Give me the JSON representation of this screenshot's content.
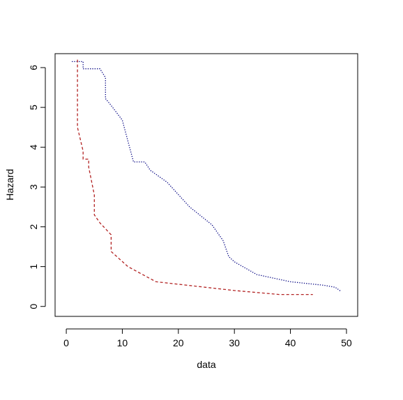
{
  "chart_data": {
    "type": "line",
    "title": "",
    "xlabel": "data",
    "ylabel": "Hazard",
    "xlim": [
      -2,
      52
    ],
    "ylim": [
      -0.25,
      6.35
    ],
    "xticks": [
      0,
      10,
      20,
      30,
      40,
      50
    ],
    "yticks": [
      0,
      1,
      2,
      3,
      4,
      5,
      6
    ],
    "grid": false,
    "legend": "none",
    "series": [
      {
        "style": "dotted",
        "color": "#000080",
        "x": [
          1,
          3,
          3,
          6,
          7,
          7,
          8,
          10,
          12,
          12,
          14,
          15,
          18,
          22,
          26,
          28,
          29,
          30,
          34,
          40,
          46,
          48,
          49
        ],
        "y": [
          6.15,
          6.15,
          5.97,
          5.97,
          5.75,
          5.22,
          5.05,
          4.68,
          3.63,
          3.63,
          3.63,
          3.42,
          3.12,
          2.5,
          2.05,
          1.65,
          1.25,
          1.12,
          0.8,
          0.62,
          0.53,
          0.48,
          0.38
        ]
      },
      {
        "style": "dashed",
        "color": "#b22222",
        "x": [
          2,
          2,
          3,
          3,
          4,
          4,
          5,
          5,
          6,
          8,
          8,
          11,
          16,
          30,
          38,
          44
        ],
        "y": [
          6.2,
          4.5,
          3.9,
          3.7,
          3.7,
          3.5,
          2.8,
          2.3,
          2.1,
          1.8,
          1.38,
          1.0,
          0.62,
          0.4,
          0.3,
          0.3
        ]
      }
    ]
  }
}
